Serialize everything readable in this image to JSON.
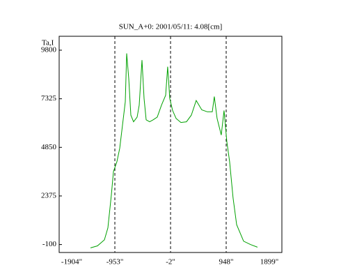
{
  "chart_data": {
    "type": "line",
    "title": "SUN_A+0: 2001/05/11: 4.08[cm]",
    "y_label": "Ta,I",
    "x": [
      -1369,
      -1250,
      -1132,
      -1072,
      -1013,
      -977,
      -918,
      -870,
      -823,
      -775,
      -751,
      -716,
      -680,
      -633,
      -573,
      -537,
      -490,
      -454,
      -419,
      -359,
      -300,
      -229,
      -157,
      -86,
      -51,
      -15,
      33,
      92,
      175,
      270,
      353,
      436,
      531,
      626,
      710,
      745,
      793,
      864,
      912,
      959,
      1007,
      1066,
      1126,
      1245,
      1363,
      1482
    ],
    "series": [
      {
        "color": "#00a000",
        "values": [
          -269,
          -168,
          137,
          745,
          2435,
          3618,
          4125,
          4801,
          5984,
          7167,
          9634,
          8350,
          6491,
          6153,
          6390,
          6998,
          9296,
          7336,
          6254,
          6153,
          6254,
          6390,
          6998,
          7505,
          8958,
          7336,
          6728,
          6322,
          6119,
          6153,
          6491,
          7235,
          6762,
          6660,
          6660,
          7437,
          6322,
          5477,
          6728,
          5139,
          4125,
          2266,
          914,
          69,
          -100,
          -235
        ]
      }
    ],
    "xlim": [
      -1904,
      1899
    ],
    "xticks": [
      {
        "value": -1904,
        "label": "-1904\""
      },
      {
        "value": -953,
        "label": "-953\""
      },
      {
        "value": -2,
        "label": "-2\""
      },
      {
        "value": 948,
        "label": "948\""
      },
      {
        "value": 1899,
        "label": "1899\""
      }
    ],
    "ylim": [
      -505,
      10509
    ],
    "yticks": [
      -100,
      2375,
      4850,
      7325,
      9800
    ],
    "grid": true
  }
}
